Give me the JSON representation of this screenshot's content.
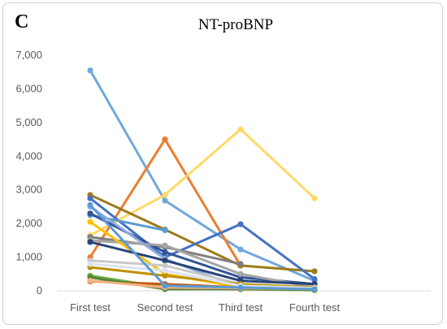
{
  "panel_label": "C",
  "chart_data": {
    "type": "line",
    "title": "NT-proBNP",
    "xlabel": "",
    "ylabel": "",
    "categories": [
      "First test",
      "Second test",
      "Third test",
      "Fourth test"
    ],
    "y_ticks": [
      "0",
      "1,000",
      "2,000",
      "3,000",
      "4,000",
      "5,000",
      "6,000",
      "7,000"
    ],
    "ylim": [
      0,
      7000
    ],
    "grid": false,
    "legend": "none",
    "series": [
      {
        "color": "#6fa8dc",
        "values": [
          6550,
          2680,
          1230,
          300
        ]
      },
      {
        "color": "#ed7d31",
        "values": [
          1000,
          4500,
          750,
          null
        ]
      },
      {
        "color": "#ffd966",
        "values": [
          1650,
          2850,
          4800,
          2750
        ]
      },
      {
        "color": "#9c7b1a",
        "values": [
          2850,
          1820,
          750,
          580
        ]
      },
      {
        "color": "#4472c4",
        "values": [
          2750,
          1000,
          1980,
          350
        ]
      },
      {
        "color": "#7f7f7f",
        "values": [
          1600,
          1300,
          800,
          null
        ]
      },
      {
        "color": "#5b9bd5",
        "values": [
          2250,
          1800,
          null,
          null
        ]
      },
      {
        "color": "#2f5597",
        "values": [
          2300,
          1150,
          400,
          200
        ]
      },
      {
        "color": "#a5a5a5",
        "values": [
          1500,
          1350,
          500,
          100
        ]
      },
      {
        "color": "#8faadc",
        "values": [
          2500,
          950,
          100,
          null
        ]
      },
      {
        "color": "#ffc000",
        "values": [
          2050,
          500,
          100,
          null
        ]
      },
      {
        "color": "#264478",
        "values": [
          1450,
          900,
          300,
          200
        ]
      },
      {
        "color": "#c9c9c9",
        "values": [
          900,
          750,
          200,
          100
        ]
      },
      {
        "color": "#70ad47",
        "values": [
          450,
          100,
          50,
          20
        ]
      },
      {
        "color": "#c55a11",
        "values": [
          280,
          200,
          100,
          50
        ]
      },
      {
        "color": "#bf9000",
        "values": [
          700,
          450,
          200,
          100
        ]
      },
      {
        "color": "#548235",
        "values": [
          400,
          50,
          50,
          30
        ]
      },
      {
        "color": "#dae3f3",
        "values": [
          800,
          600,
          150,
          80
        ]
      },
      {
        "color": "#f4b183",
        "values": [
          300,
          100,
          80,
          50
        ]
      },
      {
        "color": "#5b9bd5",
        "values": [
          2550,
          150,
          100,
          50
        ]
      }
    ]
  }
}
